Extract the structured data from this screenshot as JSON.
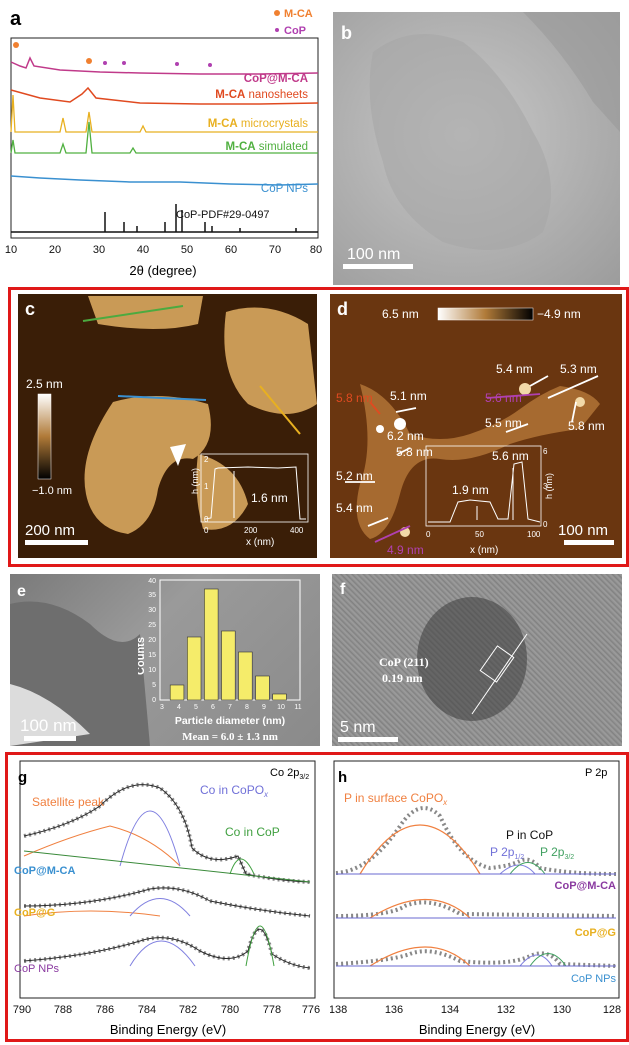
{
  "panels": {
    "a": {
      "label": "a",
      "legend": [
        {
          "text": "M-CA",
          "color": "#f08030"
        },
        {
          "text": "CoP",
          "color": "#b040b0"
        }
      ],
      "curve_labels": [
        {
          "prefix": "CoP@M-CA",
          "suffix": "",
          "color": "#c03a8a"
        },
        {
          "prefix": "M-CA",
          "suffix": " nanosheets",
          "color": "#e04a20"
        },
        {
          "prefix": "M-CA",
          "suffix": " microcrystals",
          "color": "#e8b020"
        },
        {
          "prefix": "M-CA",
          "suffix": " simulated",
          "color": "#50b040"
        },
        {
          "prefix": "CoP NPs",
          "suffix": "",
          "color": "#3a90d0"
        },
        {
          "prefix": "CoP-PDF#29-0497",
          "suffix": "",
          "color": "#111111"
        }
      ],
      "x_ticks": [
        "10",
        "20",
        "30",
        "40",
        "50",
        "60",
        "70",
        "80"
      ],
      "xlabel": "2θ (degree)"
    },
    "b": {
      "label": "b",
      "scale": "100 nm"
    },
    "c": {
      "label": "c",
      "colorbar_top": "2.5 nm",
      "colorbar_bottom": "−1.0 nm",
      "scale": "200 nm",
      "inset_height": "1.6 nm",
      "inset_xlabel": "x (nm)",
      "inset_ylabel": "h (nm)",
      "inset_xticks": [
        "0",
        "200",
        "400"
      ],
      "inset_yticks": [
        "0",
        "1",
        "2"
      ]
    },
    "d": {
      "label": "d",
      "colorbar_left": "6.5 nm",
      "colorbar_right": "−4.9 nm",
      "scale": "100 nm",
      "heights": [
        "5.4 nm",
        "5.3 nm",
        "5.8 nm",
        "5.1 nm",
        "5.6 nm",
        "6.2 nm",
        "5.5 nm",
        "5.8 nm",
        "5.2 nm",
        "5.4 nm",
        "4.9 nm",
        "5.8 nm"
      ],
      "inset_h1": "1.9 nm",
      "inset_h2": "5.6 nm",
      "inset_xlabel": "x (nm)",
      "inset_ylabel": "h (nm)",
      "inset_xticks": [
        "0",
        "50",
        "100"
      ],
      "inset_yticks": [
        "0",
        "3",
        "6"
      ]
    },
    "e": {
      "label": "e",
      "scale": "100 nm",
      "hist_ylabel": "Counts",
      "hist_xlabel": "Particle diameter (nm)",
      "hist_mean": "Mean = 6.0 ± 1.3 nm",
      "hist_xticks": [
        "3",
        "4",
        "5",
        "6",
        "7",
        "8",
        "9",
        "10",
        "11"
      ],
      "hist_yticks": [
        "0",
        "5",
        "10",
        "15",
        "20",
        "25",
        "30",
        "35",
        "40"
      ]
    },
    "f": {
      "label": "f",
      "annotation1": "CoP (211)",
      "annotation2": "0.19 nm",
      "scale": "5 nm"
    },
    "g": {
      "label": "g",
      "title": "Co 2p3/2",
      "peaks": [
        "Satellite peak",
        "Co in CoPOx",
        "Co in CoP"
      ],
      "samples": [
        "CoP@M-CA",
        "CoP@G",
        "CoP NPs"
      ],
      "x_ticks": [
        "790",
        "788",
        "786",
        "784",
        "782",
        "780",
        "778",
        "776"
      ],
      "xlabel": "Binding Energy (eV)"
    },
    "h": {
      "label": "h",
      "title": "P 2p",
      "peaks": [
        "P in surface CoPOx",
        "P in CoP",
        "P 2p1/2",
        "P 2p3/2"
      ],
      "samples": [
        "CoP@M-CA",
        "CoP@G",
        "CoP NPs"
      ],
      "x_ticks": [
        "138",
        "136",
        "134",
        "132",
        "130",
        "128"
      ],
      "xlabel": "Binding Energy (eV)"
    }
  },
  "chart_data": [
    {
      "type": "bar",
      "title": "",
      "xlabel": "Particle diameter (nm)",
      "ylabel": "Counts",
      "categories": [
        "4",
        "5",
        "6",
        "7",
        "8",
        "9",
        "10"
      ],
      "values": [
        5,
        21,
        37,
        23,
        16,
        8,
        2
      ],
      "ylim": [
        0,
        40
      ]
    }
  ]
}
